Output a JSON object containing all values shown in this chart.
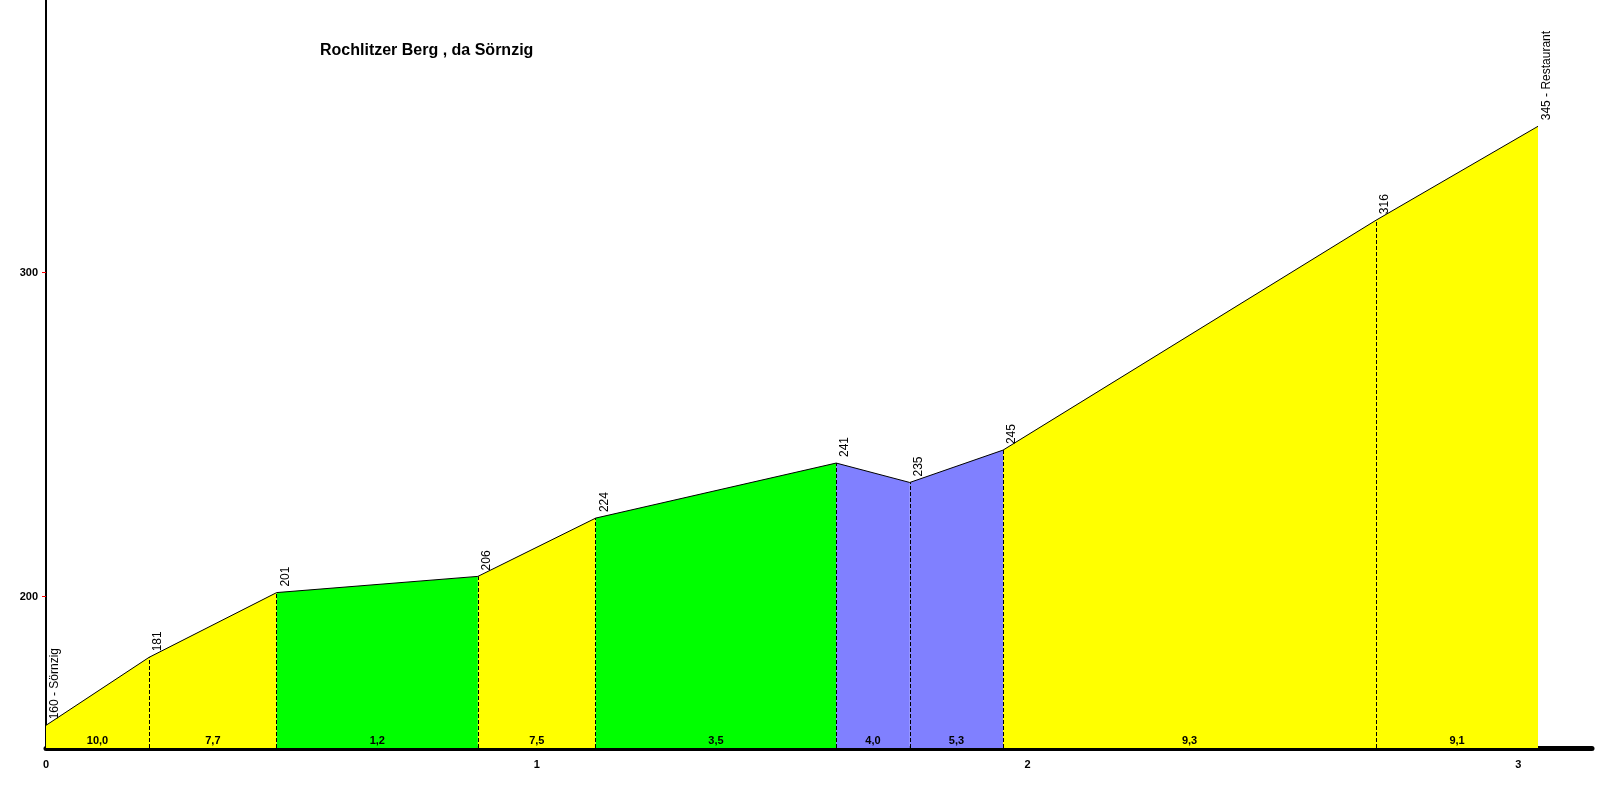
{
  "chart_data": {
    "type": "area",
    "title": "Rochlitzer Berg , da Sörnzig",
    "xlim": [
      0,
      3.15
    ],
    "xticks": [
      0,
      1,
      2,
      3
    ],
    "ylim": [
      153,
      384
    ],
    "yticks": [
      200,
      300
    ],
    "series": [
      {
        "color": "#ffff00",
        "x": [
          0,
          0.21
        ],
        "values": [
          160,
          181
        ]
      },
      {
        "color": "#ffff00",
        "x": [
          0.21,
          0.47
        ],
        "values": [
          181,
          201
        ]
      },
      {
        "color": "#00ff00",
        "x": [
          0.47,
          0.88
        ],
        "values": [
          201,
          206
        ]
      },
      {
        "color": "#ffff00",
        "x": [
          0.88,
          1.12
        ],
        "values": [
          206,
          224
        ]
      },
      {
        "color": "#00ff00",
        "x": [
          1.12,
          1.61
        ],
        "values": [
          224,
          241
        ]
      },
      {
        "color": "#8080ff",
        "x": [
          1.61,
          1.76
        ],
        "values": [
          241,
          235
        ]
      },
      {
        "color": "#8080ff",
        "x": [
          1.76,
          1.95
        ],
        "values": [
          235,
          245
        ]
      },
      {
        "color": "#ffff00",
        "x": [
          1.95,
          2.71
        ],
        "values": [
          245,
          316
        ]
      },
      {
        "color": "#ffff00",
        "x": [
          2.71,
          3.04
        ],
        "values": [
          316,
          345
        ]
      },
      {
        "type": "line",
        "color": "#000000",
        "x": [
          0,
          0.21,
          0.47,
          0.88,
          1.12,
          1.61,
          1.76,
          1.95,
          2.71,
          3.04
        ],
        "values": [
          160,
          181,
          201,
          206,
          224,
          241,
          235,
          245,
          316,
          345
        ],
        "value_labels": [
          "160 - Sörnzig",
          "181",
          "201",
          "206",
          "224",
          "241",
          "235",
          "245",
          "316",
          "345 - Restaurant"
        ]
      }
    ],
    "annotations": [
      "10,0",
      "7,7",
      "1,2",
      "7,5",
      "3,5",
      "4,0",
      "5,3",
      "9,3",
      "9,1"
    ]
  }
}
